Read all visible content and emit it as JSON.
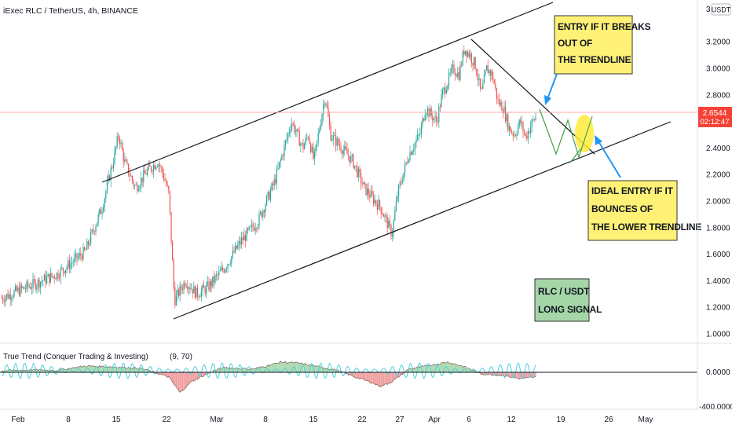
{
  "chart_data": {
    "type": "candlestick",
    "symbol_title": "iExec RLC / TetherUS, 4h, BINANCE",
    "currency": "USDT",
    "last_price": "2.6544",
    "countdown": "02:12:47",
    "ylim": [
      0.96,
      3.42
    ],
    "y_ticks": [
      "1.0000",
      "1.2000",
      "1.4000",
      "1.6000",
      "1.8000",
      "2.0000",
      "2.2000",
      "2.4000",
      "2.6000",
      "2.8000",
      "3.0000",
      "3.2000"
    ],
    "y_top_partial": "3",
    "x_ticks": [
      "Feb",
      "8",
      "15",
      "22",
      "Mar",
      "8",
      "15",
      "22",
      "27",
      "Apr",
      "6",
      "12",
      "19",
      "26",
      "May"
    ],
    "price_path": [
      [
        0,
        1.27
      ],
      [
        5,
        1.36
      ],
      [
        10,
        1.45
      ],
      [
        15,
        1.62
      ],
      [
        18,
        1.95
      ],
      [
        20,
        2.3
      ],
      [
        21,
        2.5
      ],
      [
        22,
        2.3
      ],
      [
        24,
        2.1
      ],
      [
        26,
        2.22
      ],
      [
        28,
        2.3
      ],
      [
        29,
        2.2
      ],
      [
        30,
        2.05
      ],
      [
        31,
        1.25
      ],
      [
        33,
        1.4
      ],
      [
        35,
        1.3
      ],
      [
        37,
        1.35
      ],
      [
        40,
        1.5
      ],
      [
        43,
        1.7
      ],
      [
        46,
        1.85
      ],
      [
        49,
        2.15
      ],
      [
        51,
        2.45
      ],
      [
        52,
        2.6
      ],
      [
        54,
        2.4
      ],
      [
        55,
        2.5
      ],
      [
        56,
        2.3
      ],
      [
        57,
        2.55
      ],
      [
        58,
        2.8
      ],
      [
        59,
        2.5
      ],
      [
        61,
        2.4
      ],
      [
        63,
        2.3
      ],
      [
        65,
        2.1
      ],
      [
        68,
        1.95
      ],
      [
        70,
        1.75
      ],
      [
        71,
        2.05
      ],
      [
        73,
        2.35
      ],
      [
        75,
        2.5
      ],
      [
        76,
        2.7
      ],
      [
        78,
        2.6
      ],
      [
        79,
        2.8
      ],
      [
        81,
        3.0
      ],
      [
        82,
        2.95
      ],
      [
        83,
        3.15
      ],
      [
        84,
        3.1
      ],
      [
        85,
        3.02
      ],
      [
        86,
        2.8
      ],
      [
        87,
        3.0
      ],
      [
        88,
        2.95
      ],
      [
        89,
        2.75
      ],
      [
        90,
        2.7
      ],
      [
        91,
        2.55
      ],
      [
        92,
        2.5
      ],
      [
        93,
        2.6
      ],
      [
        94,
        2.48
      ],
      [
        95,
        2.58
      ],
      [
        96,
        2.65
      ]
    ],
    "osc_path": [
      [
        0,
        20
      ],
      [
        5,
        30
      ],
      [
        10,
        25
      ],
      [
        15,
        80
      ],
      [
        20,
        70
      ],
      [
        25,
        50
      ],
      [
        30,
        -60
      ],
      [
        32,
        -260
      ],
      [
        34,
        -120
      ],
      [
        36,
        -50
      ],
      [
        38,
        20
      ],
      [
        40,
        60
      ],
      [
        45,
        40
      ],
      [
        48,
        90
      ],
      [
        50,
        130
      ],
      [
        53,
        120
      ],
      [
        56,
        80
      ],
      [
        60,
        30
      ],
      [
        63,
        -50
      ],
      [
        66,
        -120
      ],
      [
        68,
        -180
      ],
      [
        70,
        -120
      ],
      [
        73,
        40
      ],
      [
        76,
        80
      ],
      [
        80,
        130
      ],
      [
        83,
        70
      ],
      [
        86,
        -20
      ],
      [
        90,
        -40
      ],
      [
        93,
        -80
      ],
      [
        96,
        -60
      ]
    ],
    "indicator": {
      "name": "True Trend (Conquer Trading & Investing)",
      "params": "(9, 70)",
      "y_ticks": [
        "0.0000",
        "-400.0000"
      ]
    },
    "annotations": {
      "entry_breakout": [
        "ENTRY IF IT BREAKS",
        "OUT OF",
        "THE TRENDLINE"
      ],
      "entry_bounce": [
        "IDEAL ENTRY IF IT",
        "BOUNCES OF",
        "THE LOWER TRENDLINE"
      ],
      "signal": [
        "RLC / USDT",
        "LONG SIGNAL"
      ]
    },
    "colors": {
      "up": "#26a69a",
      "down": "#ef5350",
      "note_yellow": "#fff176",
      "note_green": "#a5d6a7",
      "osc_cyan": "#4dd0e1",
      "price_label": "#f44336",
      "annotation_blue": "#2196f3",
      "projection_green": "#43a047"
    }
  }
}
